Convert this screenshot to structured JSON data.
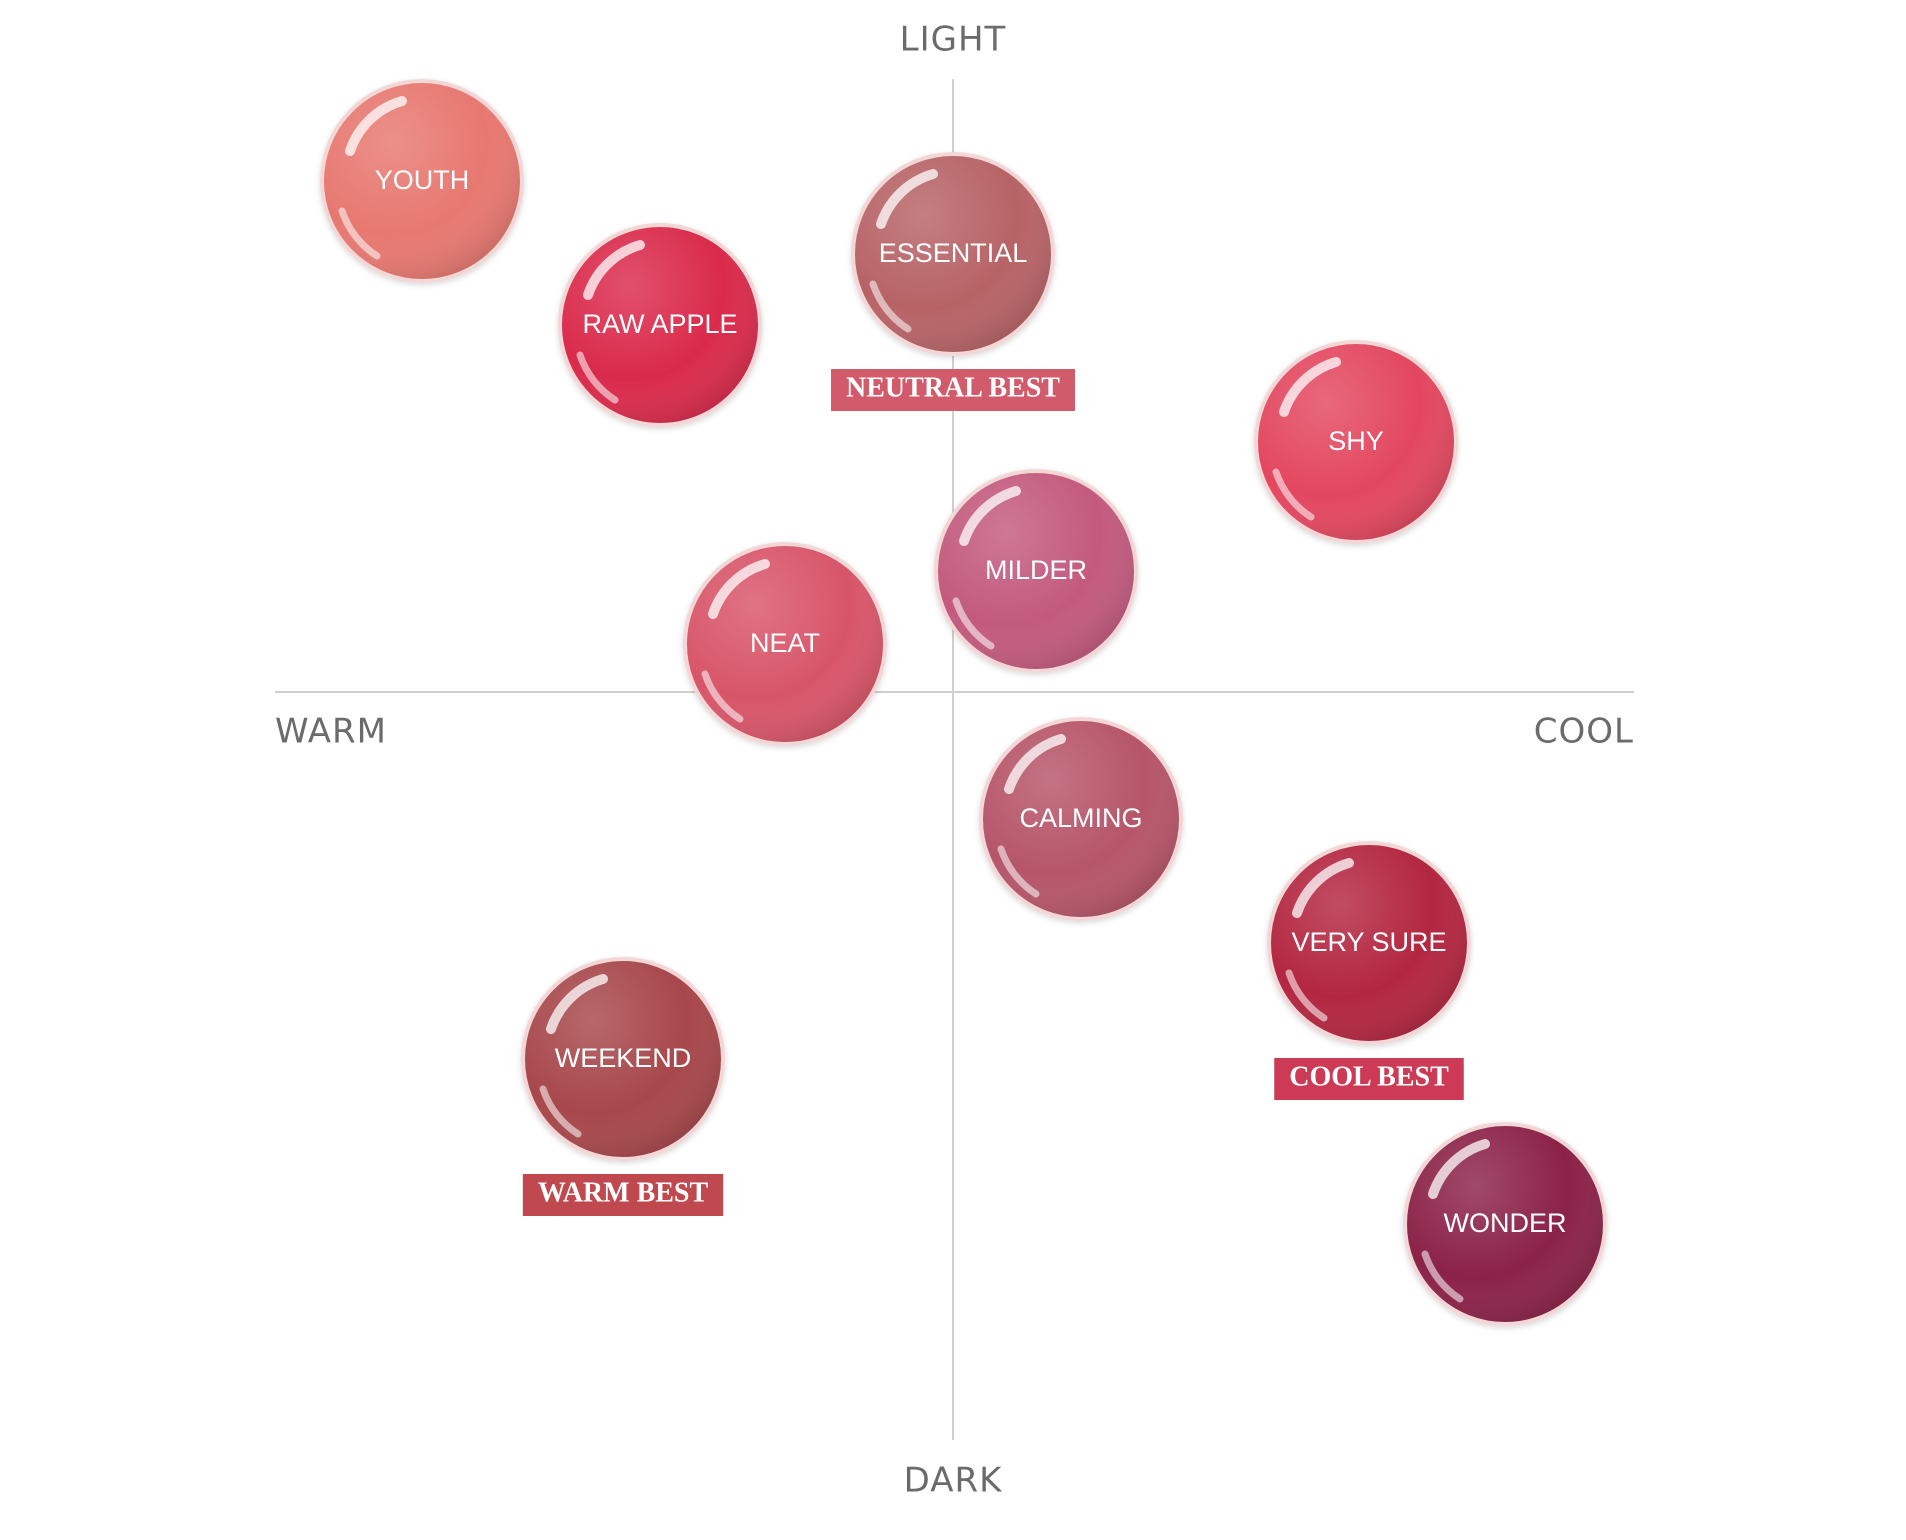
{
  "axes": {
    "top": "LIGHT",
    "bottom": "DARK",
    "left": "WARM",
    "right": "COOL"
  },
  "swatches": [
    {
      "label": "YOUTH"
    },
    {
      "label": "RAW APPLE"
    },
    {
      "label": "ESSENTIAL",
      "badge": "NEUTRAL BEST"
    },
    {
      "label": "SHY"
    },
    {
      "label": "MILDER"
    },
    {
      "label": "NEAT"
    },
    {
      "label": "CALMING"
    },
    {
      "label": "VERY SURE",
      "badge": "COOL BEST"
    },
    {
      "label": "WEEKEND",
      "badge": "WARM BEST"
    },
    {
      "label": "WONDER"
    }
  ]
}
